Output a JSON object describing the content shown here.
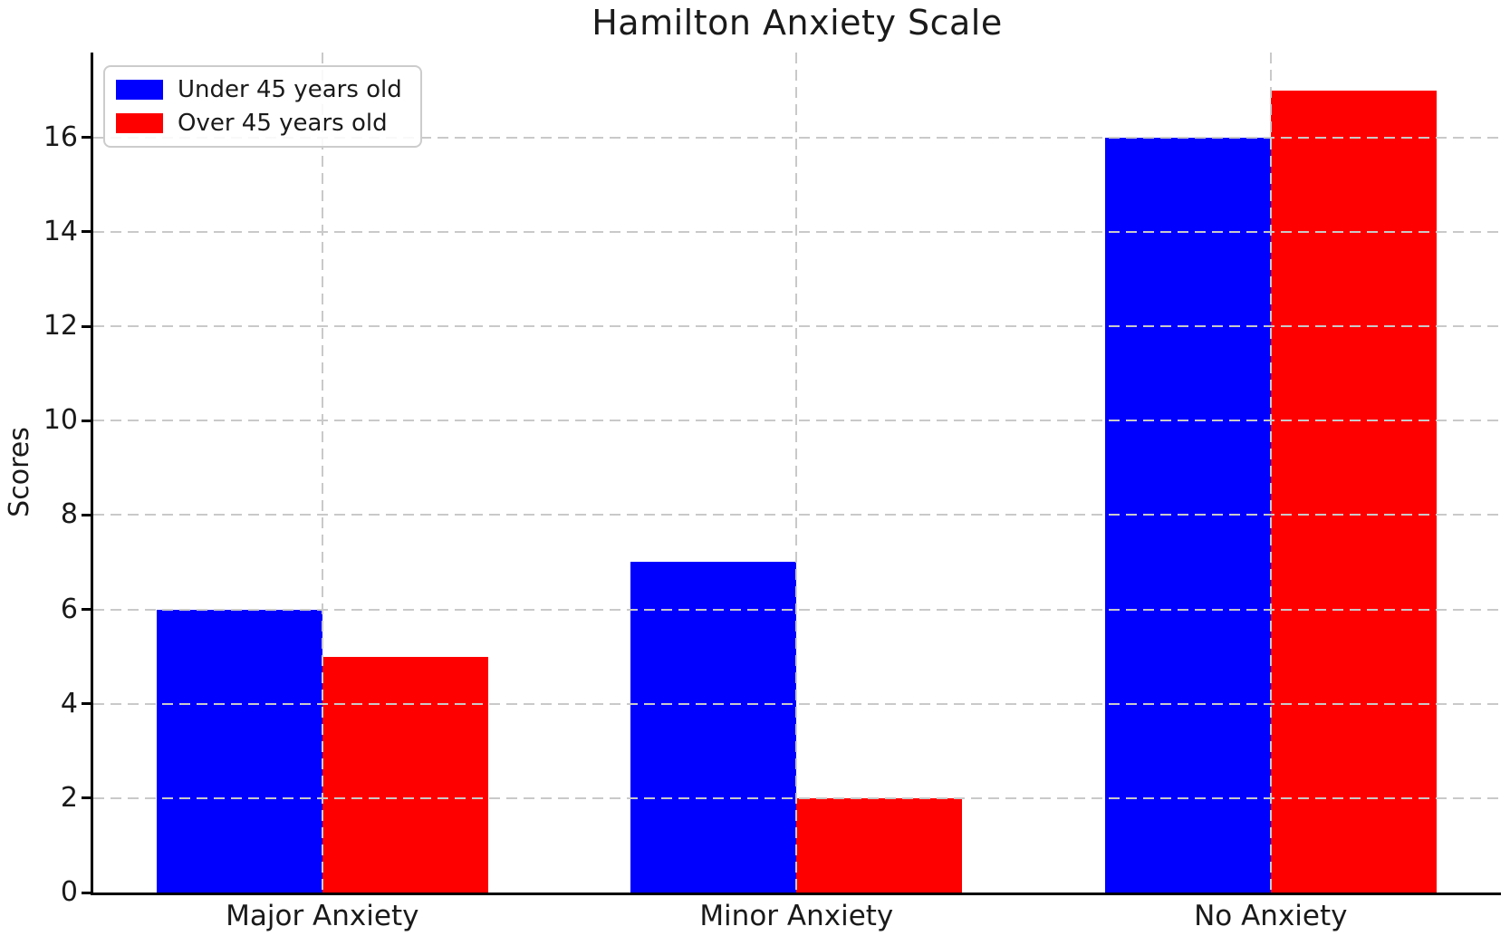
{
  "title": "Hamilton Anxiety Scale",
  "chart_data": {
    "type": "bar",
    "title": "Hamilton Anxiety Scale",
    "xlabel": "",
    "ylabel": "Scores",
    "categories": [
      "Major Anxiety",
      "Minor Anxiety",
      "No Anxiety"
    ],
    "series": [
      {
        "name": "Under 45 years old",
        "color": "#0000ff",
        "values": [
          6,
          7,
          16
        ]
      },
      {
        "name": "Over 45 years old",
        "color": "#ff0000",
        "values": [
          5,
          2,
          17
        ]
      }
    ],
    "ylim": [
      0,
      17.8
    ],
    "yticks": [
      0,
      2,
      4,
      6,
      8,
      10,
      12,
      14,
      16
    ],
    "grid": "dashed",
    "grid_color": "#c9c9c9",
    "axis_color": "#000000",
    "legend_position": "upper left",
    "background": "#ffffff"
  }
}
